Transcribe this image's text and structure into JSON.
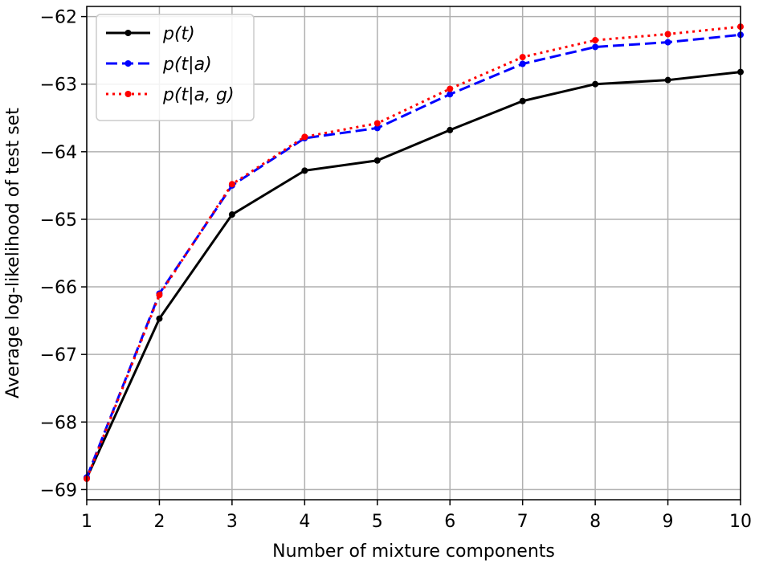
{
  "chart_data": {
    "type": "line",
    "x": [
      1,
      2,
      3,
      4,
      5,
      6,
      7,
      8,
      9,
      10
    ],
    "xlabel": "Number of mixture components",
    "ylabel": "Average log-likelihood of test set",
    "xlim": [
      1,
      10
    ],
    "ylim": [
      -69.15,
      -61.85
    ],
    "xticks": [
      1,
      2,
      3,
      4,
      5,
      6,
      7,
      8,
      9,
      10
    ],
    "yticks": [
      -69,
      -68,
      -67,
      -66,
      -65,
      -64,
      -63,
      -62
    ],
    "ytick_labels": [
      "−69",
      "−68",
      "−67",
      "−66",
      "−65",
      "−64",
      "−63",
      "−62"
    ],
    "grid": true,
    "legend_position": "top-left",
    "series": [
      {
        "name": "p(t)",
        "color": "#000000",
        "line_style": "solid",
        "values": [
          -68.83,
          -66.47,
          -64.93,
          -64.28,
          -64.13,
          -63.68,
          -63.25,
          -63.0,
          -62.94,
          -62.82
        ]
      },
      {
        "name": "p(t|a)",
        "color": "#0000ff",
        "line_style": "dashed",
        "values": [
          -68.82,
          -66.1,
          -64.5,
          -63.8,
          -63.65,
          -63.15,
          -62.7,
          -62.45,
          -62.38,
          -62.27
        ]
      },
      {
        "name": "p(t|a, g)",
        "color": "#ff0000",
        "line_style": "dotted",
        "values": [
          -68.84,
          -66.12,
          -64.48,
          -63.78,
          -63.58,
          -63.07,
          -62.6,
          -62.35,
          -62.26,
          -62.15
        ]
      }
    ]
  }
}
